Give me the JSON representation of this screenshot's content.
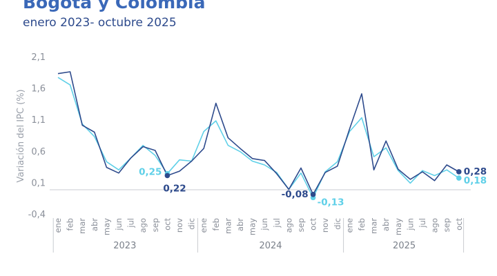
{
  "header": {
    "title": "Bogotá y Colombia",
    "subtitle": "enero 2023- octubre 2025"
  },
  "chart_data": {
    "type": "line",
    "title": "Bogotá y Colombia",
    "subtitle": "enero 2023- octubre 2025",
    "ylabel": "Variación del IPC (%)",
    "xlabel": "",
    "ylim": [
      -0.4,
      2.1
    ],
    "yticks": [
      "2,1",
      "1,6",
      "1,1",
      "0,6",
      "0,1",
      "-0,4"
    ],
    "ytick_values": [
      2.1,
      1.6,
      1.1,
      0.6,
      0.1,
      -0.4
    ],
    "grid": false,
    "x": [
      "ene",
      "feb",
      "mar",
      "abr",
      "may",
      "jun",
      "jul",
      "ago",
      "sep",
      "oct",
      "nov",
      "dic",
      "ene",
      "feb",
      "mar",
      "abr",
      "may",
      "jun",
      "jul",
      "ago",
      "sep",
      "oct",
      "nov",
      "dic",
      "ene",
      "feb",
      "mar",
      "abr",
      "may",
      "jun",
      "jul",
      "ago",
      "sep",
      "oct"
    ],
    "years": [
      {
        "label": "2023",
        "start": 0,
        "end": 11
      },
      {
        "label": "2024",
        "start": 12,
        "end": 23
      },
      {
        "label": "2025",
        "start": 24,
        "end": 33
      }
    ],
    "series": [
      {
        "color": "#2d4a8c",
        "values": [
          1.84,
          1.87,
          1.02,
          0.91,
          0.35,
          0.26,
          0.5,
          0.68,
          0.62,
          0.22,
          0.29,
          0.45,
          0.65,
          1.37,
          0.82,
          0.65,
          0.49,
          0.46,
          0.25,
          0.0,
          0.34,
          -0.08,
          0.27,
          0.37,
          0.96,
          1.52,
          0.31,
          0.77,
          0.32,
          0.16,
          0.28,
          0.14,
          0.39,
          0.28
        ],
        "point_labels": [
          {
            "index": 9,
            "text": "0,22"
          },
          {
            "index": 21,
            "text": "-0,08"
          },
          {
            "index": 33,
            "text": "0,28"
          }
        ]
      },
      {
        "color": "#5fd0e8",
        "values": [
          1.78,
          1.66,
          1.04,
          0.84,
          0.44,
          0.31,
          0.5,
          0.7,
          0.54,
          0.25,
          0.47,
          0.45,
          0.92,
          1.09,
          0.7,
          0.6,
          0.45,
          0.39,
          0.27,
          0.0,
          0.26,
          -0.13,
          0.28,
          0.44,
          0.92,
          1.14,
          0.52,
          0.66,
          0.3,
          0.1,
          0.3,
          0.22,
          0.31,
          0.18
        ],
        "point_labels": [
          {
            "index": 9,
            "text": "0,25"
          },
          {
            "index": 21,
            "text": "-0,13"
          },
          {
            "index": 33,
            "text": "0,18"
          }
        ]
      }
    ]
  }
}
